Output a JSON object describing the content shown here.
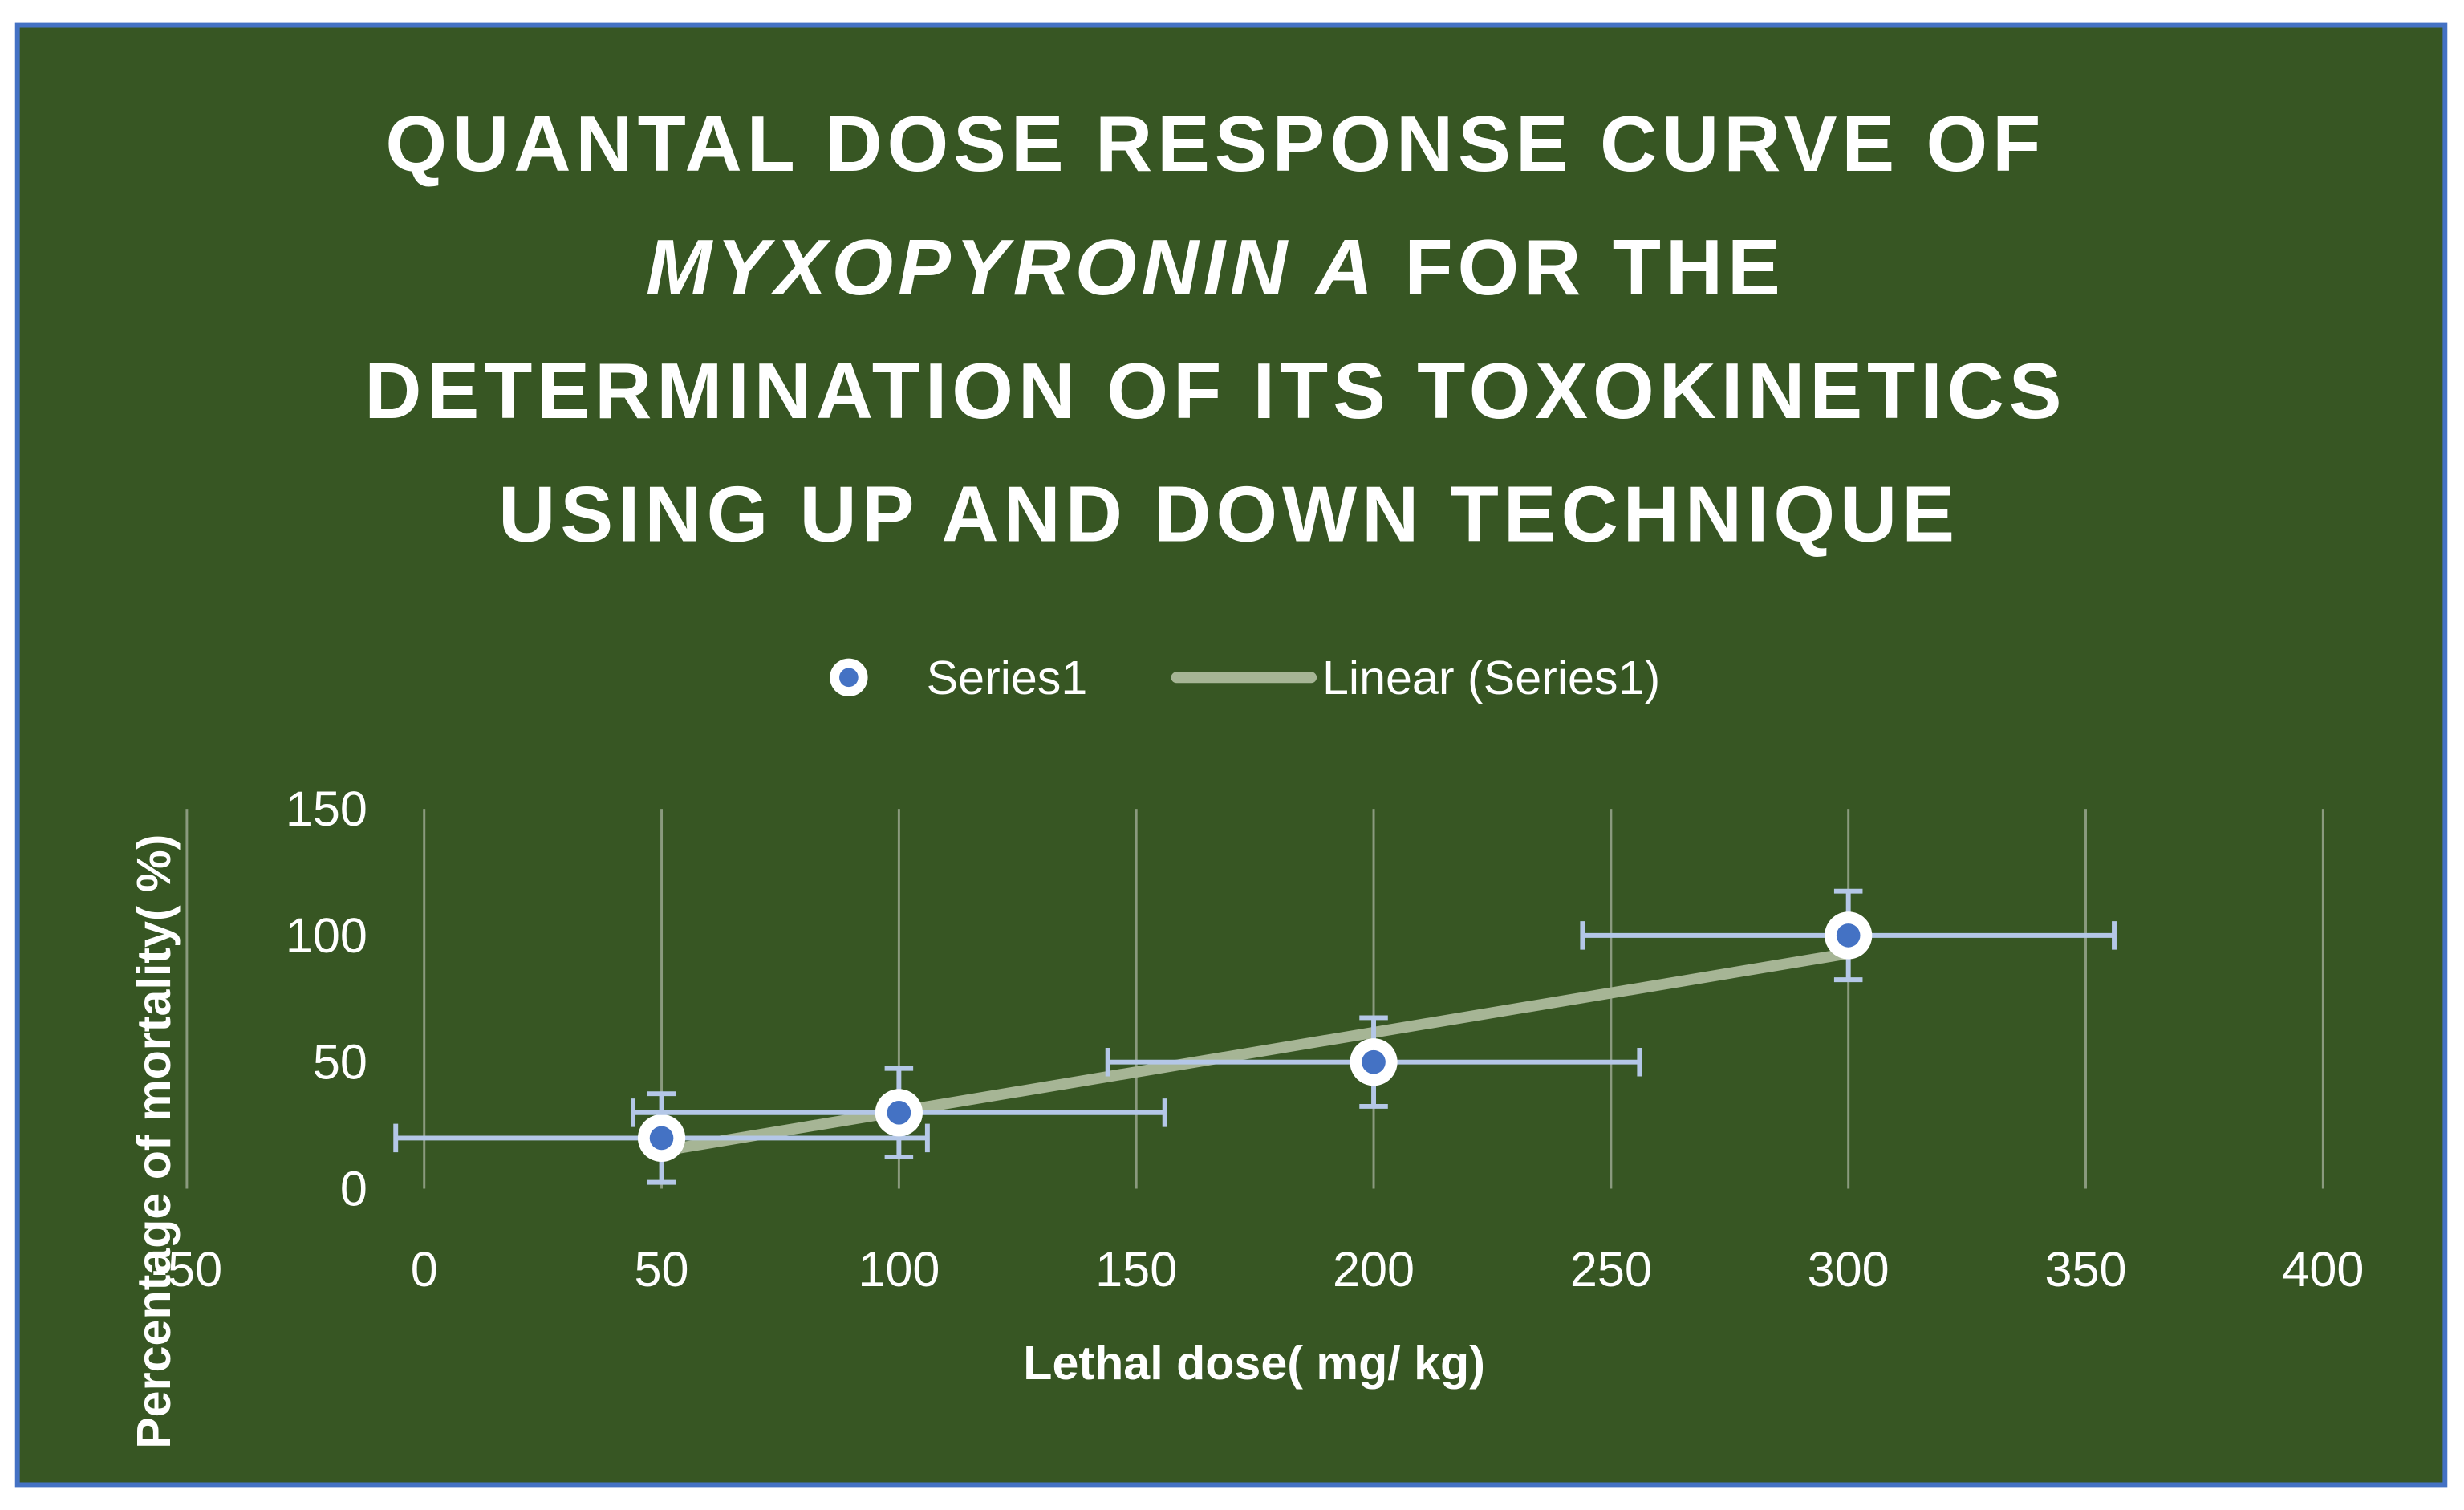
{
  "chart_data": {
    "type": "scatter",
    "title": [
      "QUANTAL DOSE RESPONSE CURVE OF",
      "MYXOPYRONIN A",
      "FOR THE",
      "DETERMINATION OF ITS TOXOKINETICS",
      "USING UP AND DOWN TECHNIQUE"
    ],
    "x_label": "Lethal dose( mg/ kg)",
    "y_label": "Percentage of mortality(  %)",
    "series": [
      {
        "name": "Series1",
        "color": "#4472c4",
        "x": [
          50,
          100,
          200,
          300
        ],
        "values": [
          20,
          30,
          50,
          100
        ],
        "x_error": [
          56,
          56,
          56,
          56
        ],
        "y_error": [
          17.5,
          17.5,
          17.5,
          17.5
        ]
      }
    ],
    "trendline": {
      "type": "linear",
      "label": "Linear (Series1)",
      "color": "#a6b595"
    },
    "xlim": [
      -50,
      400
    ],
    "xticks": [
      -50,
      0,
      50,
      100,
      150,
      200,
      250,
      300,
      350,
      400
    ],
    "ylim": [
      0,
      150
    ],
    "yticks": [
      0,
      50,
      100,
      150
    ],
    "grid": "x",
    "background": "#375623",
    "legend": "top"
  }
}
